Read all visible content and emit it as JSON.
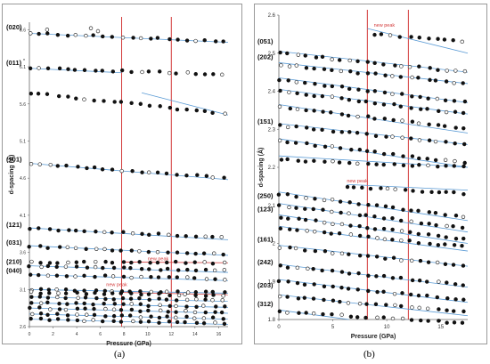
{
  "chart_data": [
    {
      "type": "scatter",
      "title": "",
      "xlabel": "Pressure (GPa)",
      "ylabel": "d-spacing (Å)",
      "xlim": [
        0,
        16.8
      ],
      "ylim": [
        2.6,
        6.7
      ],
      "xticks": [
        0,
        2,
        4,
        6,
        8,
        10,
        12,
        14,
        16
      ],
      "yticks": [
        2.6,
        3.1,
        3.6,
        4.1,
        4.6,
        5.1,
        5.6,
        6.1,
        6.6
      ],
      "ytick_labels": [
        "2.6",
        "3.1",
        "3.6",
        "4.1",
        "4.6",
        "5.1",
        "5.6",
        "6.1",
        "6.6"
      ],
      "vlines": [
        7.8,
        12
      ],
      "caption": "(a)",
      "annotations": [
        {
          "text": "new peak",
          "x": 10,
          "y": 3.47
        },
        {
          "text": "new peak",
          "x": 6.5,
          "y": 3.12
        }
      ],
      "reflection_labels": [
        {
          "text": "(020)",
          "y": 6.58
        },
        {
          "text": "(011)",
          "y": 6.1,
          "superscript": "*"
        },
        {
          "text": "(101)",
          "y": 4.8
        },
        {
          "text": "(121)",
          "y": 3.92
        },
        {
          "text": "(031)",
          "y": 3.68
        },
        {
          "text": "(210)",
          "y": 3.42
        },
        {
          "text": "(040)",
          "y": 3.3
        }
      ],
      "series": [
        {
          "y0": 6.55,
          "y1": 6.44,
          "fit": [
            [
              0,
              6.55
            ],
            [
              16.8,
              6.43
            ]
          ],
          "outliers": [
            [
              1.5,
              6.6
            ],
            [
              5.2,
              6.62
            ],
            [
              5.8,
              6.58
            ]
          ]
        },
        {
          "y0": 6.08,
          "y1": 6.0,
          "fit": [
            [
              0,
              6.08
            ],
            [
              7.8,
              6.02
            ]
          ]
        },
        {
          "y0": 5.75,
          "y1": 5.46,
          "fit": [
            [
              9.5,
              5.75
            ],
            [
              16.8,
              5.45
            ]
          ]
        },
        {
          "y0": 4.8,
          "y1": 4.6,
          "fit": [
            [
              0,
              4.8
            ],
            [
              16.8,
              4.58
            ]
          ]
        },
        {
          "y0": 3.92,
          "y1": 3.8,
          "fit": [
            [
              0,
              3.93
            ],
            [
              16.8,
              3.77
            ]
          ]
        },
        {
          "y0": 3.68,
          "y1": 3.57,
          "fit": [
            [
              0,
              3.69
            ],
            [
              16.8,
              3.56
            ]
          ]
        },
        {
          "y0": 3.47,
          "y1": 3.46,
          "fit": [
            [
              7.8,
              3.47
            ],
            [
              16.8,
              3.46
            ]
          ],
          "fit_color": "#d33a3a"
        },
        {
          "y0": 3.42,
          "y1": 3.35,
          "fit": [
            [
              0,
              3.42
            ],
            [
              16.8,
              3.33
            ]
          ]
        },
        {
          "y0": 3.3,
          "y1": 3.24,
          "fit": [
            [
              0,
              3.3
            ],
            [
              16.8,
              3.22
            ]
          ]
        },
        {
          "y0": 3.1,
          "y1": 3.06,
          "fit": [
            [
              0,
              3.1
            ],
            [
              16.8,
              3.05
            ]
          ]
        },
        {
          "y0": 3.06,
          "y1": 3.02,
          "fit": [
            [
              7.8,
              3.06
            ],
            [
              16.8,
              3.03
            ]
          ],
          "fit_color": "#d33a3a"
        },
        {
          "y0": 3.0,
          "y1": 2.95,
          "fit": [
            [
              0,
              3.0
            ],
            [
              16.8,
              2.94
            ]
          ]
        },
        {
          "y0": 2.92,
          "y1": 2.87,
          "fit": [
            [
              0,
              2.92
            ],
            [
              16.8,
              2.86
            ]
          ]
        },
        {
          "y0": 2.85,
          "y1": 2.79,
          "fit": [
            [
              0,
              2.85
            ],
            [
              16.8,
              2.78
            ]
          ]
        },
        {
          "y0": 2.77,
          "y1": 2.71,
          "fit": [
            [
              0,
              2.77
            ],
            [
              16.8,
              2.7
            ]
          ]
        },
        {
          "y0": 2.7,
          "y1": 2.64,
          "fit": [
            [
              0,
              2.7
            ],
            [
              16.8,
              2.63
            ]
          ]
        }
      ]
    },
    {
      "type": "scatter",
      "title": "",
      "xlabel": "Pressure (GPa)",
      "ylabel": "d-spacing (Å)",
      "xlim": [
        0,
        17.5
      ],
      "ylim": [
        1.8,
        2.6
      ],
      "xticks": [
        0,
        5,
        10,
        15
      ],
      "yticks": [
        1.8,
        1.9,
        2.0,
        2.1,
        2.2,
        2.3,
        2.4,
        2.5,
        2.6
      ],
      "ytick_labels": [
        "1.8",
        "1.9",
        "2",
        "2.1",
        "2.2",
        "2.3",
        "2.4",
        "2.5",
        "2.6"
      ],
      "vlines": [
        8.2,
        12
      ],
      "caption": "(b)",
      "annotations": [
        {
          "text": "new peak",
          "x": 8.8,
          "y": 2.565
        },
        {
          "text": "new peak",
          "x": 6.3,
          "y": 2.155
        }
      ],
      "reflection_labels": [
        {
          "text": "(051)",
          "y": 2.52
        },
        {
          "text": "(202)",
          "y": 2.48
        },
        {
          "text": "(151)",
          "y": 2.31
        },
        {
          "text": "(250)",
          "y": 2.115
        },
        {
          "text": "(123)",
          "y": 2.08
        },
        {
          "text": "(161)",
          "y": 2.0
        },
        {
          "text": "(242)",
          "y": 1.94
        },
        {
          "text": "(203)",
          "y": 1.88
        },
        {
          "text": "(312)",
          "y": 1.83
        }
      ],
      "series": [
        {
          "y0": 2.55,
          "y1": 2.53,
          "fit": [
            [
              8.2,
              2.565
            ],
            [
              17.5,
              2.5
            ]
          ],
          "fit_color": "#5b9bd5",
          "start": 8.8
        },
        {
          "y0": 2.5,
          "y1": 2.45,
          "fit": [
            [
              0,
              2.505
            ],
            [
              17.5,
              2.45
            ]
          ]
        },
        {
          "y0": 2.47,
          "y1": 2.42,
          "fit": [
            [
              0,
              2.475
            ],
            [
              17.5,
              2.42
            ]
          ]
        },
        {
          "y0": 2.43,
          "y1": 2.37,
          "fit": [
            [
              0,
              2.435
            ],
            [
              17.5,
              2.37
            ]
          ]
        },
        {
          "y0": 2.4,
          "y1": 2.34,
          "fit": [
            [
              0,
              2.405
            ],
            [
              17.5,
              2.34
            ]
          ]
        },
        {
          "y0": 2.36,
          "y1": 2.3,
          "fit": [
            [
              0,
              2.365
            ],
            [
              17.5,
              2.29
            ]
          ]
        },
        {
          "y0": 2.31,
          "y1": 2.26,
          "fit": [
            [
              0,
              2.315
            ],
            [
              17.5,
              2.26
            ]
          ]
        },
        {
          "y0": 2.27,
          "y1": 2.21,
          "fit": [
            [
              0,
              2.275
            ],
            [
              17.5,
              2.2
            ]
          ]
        },
        {
          "y0": 2.22,
          "y1": 2.2,
          "fit": [
            [
              0,
              2.23
            ],
            [
              17.5,
              2.2
            ]
          ]
        },
        {
          "y0": 2.15,
          "y1": 2.13,
          "fit": [
            [
              6.3,
              2.155
            ],
            [
              17.5,
              2.14
            ]
          ],
          "start": 6.3
        },
        {
          "y0": 2.13,
          "y1": 2.07,
          "fit": [
            [
              0,
              2.135
            ],
            [
              17.5,
              2.06
            ]
          ]
        },
        {
          "y0": 2.1,
          "y1": 2.04,
          "fit": [
            [
              0,
              2.105
            ],
            [
              17.5,
              2.03
            ]
          ]
        },
        {
          "y0": 2.07,
          "y1": 2.01,
          "fit": [
            [
              0,
              2.075
            ],
            [
              17.5,
              2.0
            ]
          ]
        },
        {
          "y0": 2.04,
          "y1": 1.99,
          "fit": [
            [
              0,
              2.045
            ],
            [
              17.5,
              1.98
            ]
          ]
        },
        {
          "y0": 1.99,
          "y1": 1.94,
          "fit": [
            [
              0,
              1.995
            ],
            [
              17.5,
              1.94
            ]
          ]
        },
        {
          "y0": 1.94,
          "y1": 1.89,
          "fit": [
            [
              0,
              1.945
            ],
            [
              17.5,
              1.885
            ]
          ]
        },
        {
          "y0": 1.9,
          "y1": 1.85,
          "fit": [
            [
              0,
              1.905
            ],
            [
              17.5,
              1.845
            ]
          ]
        },
        {
          "y0": 1.86,
          "y1": 1.82,
          "fit": [
            [
              0,
              1.865
            ],
            [
              17.5,
              1.81
            ]
          ]
        },
        {
          "y0": 1.82,
          "y1": 1.79,
          "fit": [
            [
              0,
              1.825
            ],
            [
              6.5,
              1.8
            ]
          ]
        }
      ]
    }
  ],
  "colors": {
    "fit": "#5b9bd5",
    "phase_line": "#d33a3a",
    "point": "#111111",
    "annotation": "#d33a3a"
  }
}
